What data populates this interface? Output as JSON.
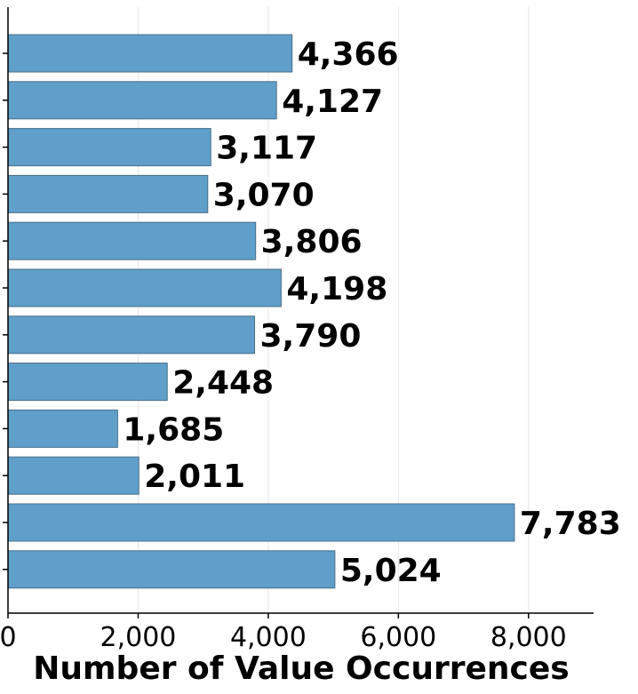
{
  "chart_data": {
    "type": "bar",
    "orientation": "horizontal",
    "values": [
      4366,
      4127,
      3117,
      3070,
      3806,
      4198,
      3790,
      2448,
      1685,
      2011,
      7783,
      5024
    ],
    "value_labels": [
      "4,366",
      "4,127",
      "3,117",
      "3,070",
      "3,806",
      "4,198",
      "3,790",
      "2,448",
      "1,685",
      "2,011",
      "7,783",
      "5,024"
    ],
    "xlabel": "Number of Value Occurrences",
    "xlim": [
      0,
      9000
    ],
    "xticks": [
      0,
      2000,
      4000,
      6000,
      8000
    ],
    "xtick_labels": [
      "0",
      "2,000",
      "4,000",
      "6,000",
      "8,000"
    ],
    "grid": "vertical",
    "colors": {
      "bar": "#5f9fca",
      "bar_edge": "#4a6f8a",
      "grid": "#e6e6e6",
      "axis": "#000000"
    }
  }
}
